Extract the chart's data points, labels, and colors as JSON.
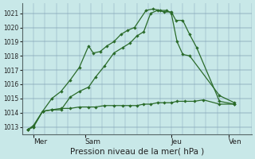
{
  "bg_color": "#c8e8e8",
  "line_color": "#2a6b2a",
  "grid_color_h": "#88aabb",
  "grid_color_v": "#88aabb",
  "xlabel": "Pression niveau de la mer( hPa )",
  "ylim": [
    1012.5,
    1021.7
  ],
  "xlim": [
    0,
    20
  ],
  "yticks": [
    1013,
    1014,
    1015,
    1016,
    1017,
    1018,
    1019,
    1020,
    1021
  ],
  "ytick_fontsize": 5.5,
  "xtick_fontsize": 6.5,
  "xlabel_fontsize": 7.5,
  "day_positions": [
    1.0,
    5.5,
    13.0,
    18.0
  ],
  "day_labels": [
    "Mer",
    "Sam",
    "Jeu",
    "Ven"
  ],
  "vgrid_positions": [
    0,
    1,
    2,
    3,
    4,
    5,
    6,
    7,
    8,
    9,
    10,
    11,
    12,
    13,
    14,
    15,
    16,
    17,
    18,
    19,
    20
  ],
  "series1": {
    "x": [
      0.5,
      1.0,
      1.8,
      2.6,
      3.4,
      4.2,
      5.0,
      5.8,
      6.2,
      6.8,
      7.4,
      8.0,
      8.6,
      9.2,
      9.8,
      10.8,
      11.4,
      12.0,
      12.6,
      13.0,
      13.5,
      14.0,
      14.6,
      17.2,
      18.5
    ],
    "y": [
      1012.8,
      1013.0,
      1014.1,
      1015.0,
      1015.5,
      1016.3,
      1017.2,
      1018.7,
      1018.2,
      1018.3,
      1018.7,
      1019.0,
      1019.5,
      1019.8,
      1020.0,
      1021.2,
      1021.3,
      1021.2,
      1021.2,
      1021.0,
      1019.0,
      1018.1,
      1018.0,
      1015.2,
      1014.7
    ]
  },
  "series2": {
    "x": [
      0.5,
      1.0,
      1.8,
      2.6,
      3.4,
      4.2,
      5.0,
      5.8,
      6.4,
      7.2,
      8.0,
      8.8,
      9.4,
      10.0,
      10.6,
      11.2,
      11.8,
      12.4,
      13.0,
      13.4,
      14.0,
      14.6,
      15.2,
      17.2,
      18.5
    ],
    "y": [
      1012.8,
      1013.1,
      1014.1,
      1014.2,
      1014.2,
      1015.1,
      1015.5,
      1015.8,
      1016.5,
      1017.3,
      1018.2,
      1018.6,
      1018.9,
      1019.4,
      1019.7,
      1021.0,
      1021.2,
      1021.1,
      1021.1,
      1020.5,
      1020.5,
      1019.5,
      1018.6,
      1014.8,
      1014.6
    ]
  },
  "series3": {
    "x": [
      0.5,
      1.0,
      1.8,
      2.6,
      3.4,
      4.2,
      5.0,
      5.8,
      6.4,
      7.2,
      8.0,
      8.8,
      9.4,
      10.0,
      10.6,
      11.2,
      11.8,
      12.4,
      13.0,
      13.5,
      14.2,
      15.0,
      15.8,
      17.2,
      18.5
    ],
    "y": [
      1012.8,
      1013.0,
      1014.1,
      1014.2,
      1014.3,
      1014.3,
      1014.4,
      1014.4,
      1014.4,
      1014.5,
      1014.5,
      1014.5,
      1014.5,
      1014.5,
      1014.6,
      1014.6,
      1014.7,
      1014.7,
      1014.7,
      1014.8,
      1014.8,
      1014.8,
      1014.9,
      1014.6,
      1014.6
    ]
  }
}
